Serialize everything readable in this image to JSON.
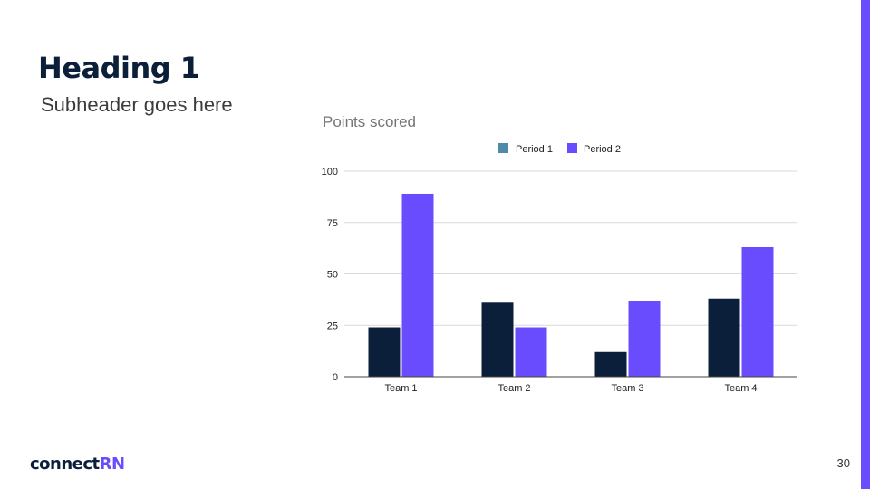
{
  "colors": {
    "accent": "#6a4cff",
    "navy": "#0c1f3a",
    "period1": "#0c1f3a",
    "period2": "#6a4cff",
    "grid": "#d9d9d9",
    "text_gray": "#757575"
  },
  "slide": {
    "heading": "Heading 1",
    "subheader": "Subheader goes here",
    "page_number": "30",
    "logo": {
      "part1": "connect",
      "part2": "RN"
    }
  },
  "chart_data": {
    "type": "bar",
    "title": "Points scored",
    "categories": [
      "Team 1",
      "Team 2",
      "Team 3",
      "Team 4"
    ],
    "series": [
      {
        "name": "Period 1",
        "values": [
          24,
          36,
          12,
          38
        ],
        "legend_color": "#4f8aa8"
      },
      {
        "name": "Period 2",
        "values": [
          89,
          24,
          37,
          63
        ],
        "legend_color": "#6a4cff"
      }
    ],
    "yticks": [
      0,
      25,
      50,
      75,
      100
    ],
    "ylim": [
      0,
      100
    ],
    "xlabel": "",
    "ylabel": "",
    "grid": true,
    "legend_position": "top"
  }
}
